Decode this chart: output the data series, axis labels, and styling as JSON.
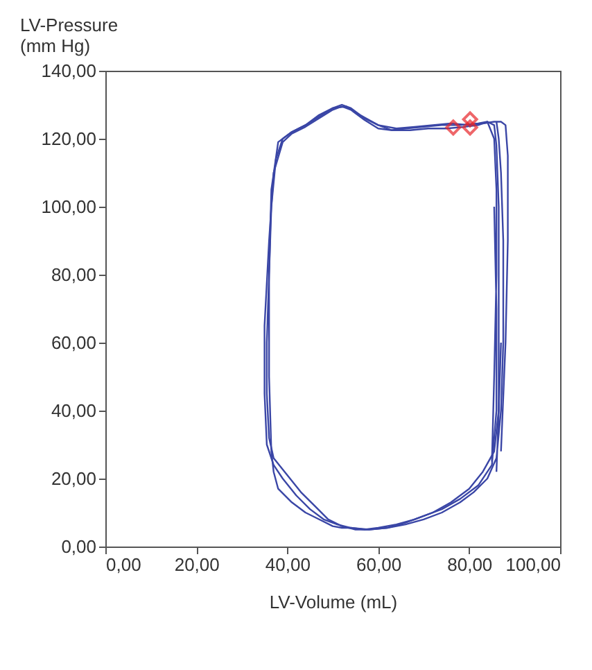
{
  "chart_data": {
    "type": "line",
    "xlabel": "LV-Volume   (mL)",
    "ylabel": "LV-Pressure\n(mm Hg)",
    "xlim": [
      0,
      100
    ],
    "ylim": [
      0,
      140
    ],
    "xticks": [
      {
        "value": 0,
        "label": "0,00"
      },
      {
        "value": 20,
        "label": "20,00"
      },
      {
        "value": 40,
        "label": "40,00"
      },
      {
        "value": 60,
        "label": "60,00"
      },
      {
        "value": 80,
        "label": "80,00"
      },
      {
        "value": 100,
        "label": "100,00"
      }
    ],
    "yticks": [
      {
        "value": 0,
        "label": "0,00"
      },
      {
        "value": 20,
        "label": "20,00"
      },
      {
        "value": 40,
        "label": "40,00"
      },
      {
        "value": 60,
        "label": "60,00"
      },
      {
        "value": 80,
        "label": "80,00"
      },
      {
        "value": 100,
        "label": "100,00"
      },
      {
        "value": 120,
        "label": "120,00"
      },
      {
        "value": 140,
        "label": "140,00"
      }
    ],
    "grid": false,
    "series": [
      {
        "color": "#3a46a6",
        "marker": "none",
        "x": [
          86,
          86.5,
          86.5,
          86.5,
          86,
          85.5,
          84,
          82,
          78,
          74,
          70,
          66,
          63,
          60,
          57,
          54,
          52,
          50,
          47,
          44,
          41,
          39,
          37.5,
          36.5,
          36,
          35.5,
          35.5,
          36,
          37,
          40,
          43,
          46,
          49,
          52,
          55,
          58,
          62,
          66,
          70,
          74,
          78,
          81,
          84,
          86,
          87,
          87.5,
          87.5,
          87,
          86.5,
          86
        ],
        "values": [
          22,
          40,
          70,
          100,
          118,
          124,
          125,
          124.5,
          124,
          124,
          123.5,
          123,
          122.5,
          124,
          126,
          129,
          130,
          129,
          126.5,
          124,
          122,
          120,
          114,
          100,
          80,
          60,
          45,
          32,
          26,
          21,
          16,
          12,
          8,
          6,
          5,
          5,
          5.5,
          6.5,
          8,
          10,
          13,
          16,
          20,
          26,
          40,
          60,
          90,
          110,
          120,
          125
        ]
      },
      {
        "color": "#3a46a6",
        "marker": "none",
        "x": [
          87,
          88,
          88.5,
          88.5,
          88,
          87,
          85.5,
          83,
          80,
          76,
          72,
          68,
          64,
          60,
          56,
          53,
          50,
          47,
          44,
          41,
          38,
          36.5,
          36,
          36,
          36.5,
          37,
          38,
          41,
          44,
          47,
          50,
          52,
          54,
          57,
          60,
          64,
          68,
          72,
          76,
          80,
          83,
          85.5,
          86.5,
          87
        ],
        "values": [
          28,
          60,
          90,
          115,
          124,
          125,
          125,
          124.5,
          124,
          124.5,
          124,
          123.5,
          123,
          124,
          127,
          129.5,
          129,
          127,
          124,
          122,
          119,
          105,
          80,
          50,
          28,
          22,
          17,
          13,
          10,
          8,
          6,
          5.5,
          5.5,
          5,
          5.5,
          6.5,
          8,
          10,
          13,
          17,
          22,
          28,
          40,
          60
        ]
      },
      {
        "color": "#3a46a6",
        "marker": "none",
        "x": [
          85,
          85.5,
          86,
          86,
          85.5,
          84,
          82,
          79,
          75,
          71,
          67,
          63,
          60,
          57,
          54,
          52,
          50,
          47,
          44,
          41,
          39,
          37,
          36,
          35,
          35,
          35.5,
          37,
          39,
          42,
          45,
          48,
          51,
          54,
          58,
          62,
          66,
          70,
          74,
          78,
          82,
          85,
          86,
          86,
          85.5
        ],
        "values": [
          25,
          50,
          80,
          105,
          120,
          125,
          124,
          123.5,
          123,
          123,
          122.5,
          122.5,
          123,
          125.5,
          128.5,
          129.5,
          128.5,
          126,
          123.5,
          121.5,
          119,
          110,
          90,
          65,
          45,
          30,
          24,
          20,
          15,
          11,
          8,
          6.5,
          5.5,
          5,
          5.5,
          7,
          9,
          11,
          14,
          18,
          24,
          40,
          70,
          100
        ]
      },
      {
        "type": "scatter",
        "color": "#e8262a",
        "marker": "diamond",
        "x": [
          76.5,
          80.2,
          80.2
        ],
        "values": [
          123.3,
          125.7,
          123.3
        ]
      }
    ]
  }
}
